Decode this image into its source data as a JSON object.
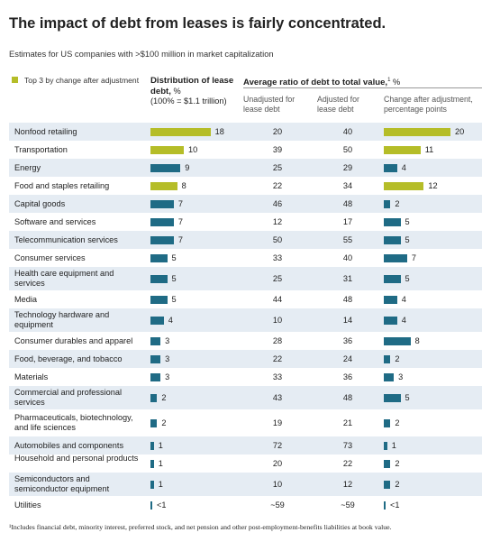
{
  "title": "The impact of debt from leases is fairly concentrated.",
  "subtitle": "Estimates for US companies with >$100 million in market capitalization",
  "legend": {
    "label": "Top 3 by change after adjustment",
    "color": "#b5bd28"
  },
  "colors": {
    "highlight": "#b5bd28",
    "normal": "#1f6b85",
    "shade": "#e5ecf3"
  },
  "headers": {
    "distribution_title": "Distribution of lease debt,",
    "distribution_unit": "%",
    "distribution_note": "(100% = $1.1 trillion)",
    "ratio_title": "Average ratio of debt to total value,",
    "ratio_sup": "1",
    "ratio_unit": "%",
    "col_unadjusted": "Unadjusted for lease debt",
    "col_adjusted": "Adjusted for lease debt",
    "col_change": "Change after adjustment, percentage points"
  },
  "footnote": "¹Includes financial debt, minority interest, preferred stock, and net pension and other post-employment-benefits liabilities at book value.",
  "chart_data": {
    "type": "table",
    "columns": [
      "Distribution of lease debt, %",
      "Unadjusted for lease debt",
      "Adjusted for lease debt",
      "Change after adjustment, percentage points"
    ],
    "rows": [
      {
        "name": "Nonfood retailing",
        "dist": 18,
        "dist_label": "18",
        "unadj": "20",
        "adj": "40",
        "change": 20,
        "change_label": "20",
        "top3": true
      },
      {
        "name": "Transportation",
        "dist": 10,
        "dist_label": "10",
        "unadj": "39",
        "adj": "50",
        "change": 11,
        "change_label": "11",
        "top3": true
      },
      {
        "name": "Energy",
        "dist": 9,
        "dist_label": "9",
        "unadj": "25",
        "adj": "29",
        "change": 4,
        "change_label": "4",
        "top3": false
      },
      {
        "name": "Food and staples retailing",
        "dist": 8,
        "dist_label": "8",
        "unadj": "22",
        "adj": "34",
        "change": 12,
        "change_label": "12",
        "top3": true
      },
      {
        "name": "Capital goods",
        "dist": 7,
        "dist_label": "7",
        "unadj": "46",
        "adj": "48",
        "change": 2,
        "change_label": "2",
        "top3": false
      },
      {
        "name": "Software and services",
        "dist": 7,
        "dist_label": "7",
        "unadj": "12",
        "adj": "17",
        "change": 5,
        "change_label": "5",
        "top3": false
      },
      {
        "name": "Telecommunication services",
        "dist": 7,
        "dist_label": "7",
        "unadj": "50",
        "adj": "55",
        "change": 5,
        "change_label": "5",
        "top3": false
      },
      {
        "name": "Consumer services",
        "dist": 5,
        "dist_label": "5",
        "unadj": "33",
        "adj": "40",
        "change": 7,
        "change_label": "7",
        "top3": false
      },
      {
        "name": "Health care equipment and services",
        "dist": 5,
        "dist_label": "5",
        "unadj": "25",
        "adj": "31",
        "change": 5,
        "change_label": "5",
        "top3": false
      },
      {
        "name": "Media",
        "dist": 5,
        "dist_label": "5",
        "unadj": "44",
        "adj": "48",
        "change": 4,
        "change_label": "4",
        "top3": false
      },
      {
        "name": "Technology hardware and equipment",
        "dist": 4,
        "dist_label": "4",
        "unadj": "10",
        "adj": "14",
        "change": 4,
        "change_label": "4",
        "top3": false
      },
      {
        "name": "Consumer durables and apparel",
        "dist": 3,
        "dist_label": "3",
        "unadj": "28",
        "adj": "36",
        "change": 8,
        "change_label": "8",
        "top3": false
      },
      {
        "name": "Food, beverage, and tobacco",
        "dist": 3,
        "dist_label": "3",
        "unadj": "22",
        "adj": "24",
        "change": 2,
        "change_label": "2",
        "top3": false
      },
      {
        "name": "Materials",
        "dist": 3,
        "dist_label": "3",
        "unadj": "33",
        "adj": "36",
        "change": 3,
        "change_label": "3",
        "top3": false
      },
      {
        "name": "Commercial and professional services",
        "dist": 2,
        "dist_label": "2",
        "unadj": "43",
        "adj": "48",
        "change": 5,
        "change_label": "5",
        "top3": false
      },
      {
        "name": "Pharmaceuticals, biotechnology, and life sciences",
        "dist": 2,
        "dist_label": "2",
        "unadj": "19",
        "adj": "21",
        "change": 2,
        "change_label": "2",
        "top3": false
      },
      {
        "name": "Automobiles and components",
        "dist": 1,
        "dist_label": "1",
        "unadj": "72",
        "adj": "73",
        "change": 1,
        "change_label": "1",
        "top3": false
      },
      {
        "name": "Household and personal products",
        "dist": 1,
        "dist_label": "1",
        "unadj": "20",
        "adj": "22",
        "change": 2,
        "change_label": "2",
        "top3": false
      },
      {
        "name": "Semiconductors and semiconductor equipment",
        "dist": 1,
        "dist_label": "1",
        "unadj": "10",
        "adj": "12",
        "change": 2,
        "change_label": "2",
        "top3": false
      },
      {
        "name": "Utilities",
        "dist": 0.3,
        "dist_label": "<1",
        "unadj": "~59",
        "adj": "~59",
        "change": 0.3,
        "change_label": "<1",
        "top3": false
      }
    ]
  }
}
